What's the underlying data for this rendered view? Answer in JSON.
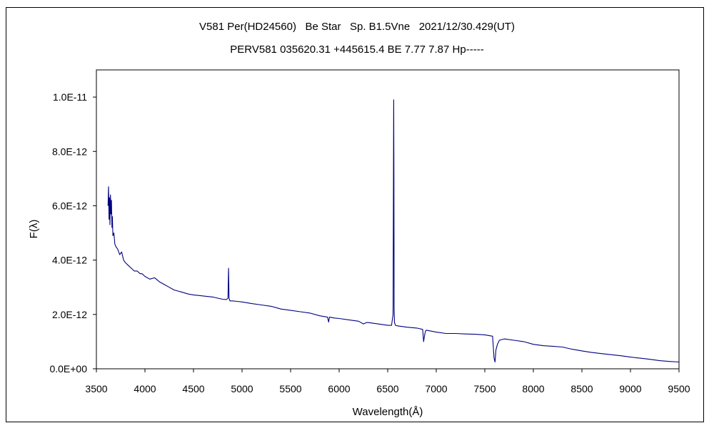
{
  "chart_data": {
    "type": "line",
    "title": "V581 Per(HD24560)   Be Star   Sp. B1.5Vne   2021/12/30.429(UT)",
    "subtitle": "PERV581 035620.31 +445615.4 BE 7.77 7.87 Hp-----",
    "xlabel": "Wavelength(Å)",
    "ylabel": "F(λ)",
    "xlim": [
      3500,
      9500
    ],
    "ylim": [
      0,
      1.1e-11
    ],
    "x_ticks": [
      3500,
      4000,
      4500,
      5000,
      5500,
      6000,
      6500,
      7000,
      7500,
      8000,
      8500,
      9000,
      9500
    ],
    "y_ticks": [
      0,
      2e-12,
      4e-12,
      6e-12,
      8e-12,
      1e-11
    ],
    "y_tick_labels": [
      "0.0E+00",
      "2.0E-12",
      "4.0E-12",
      "6.0E-12",
      "8.0E-12",
      "1.0E-11"
    ],
    "grid": false,
    "legend": "none",
    "line_color": "#000080",
    "series": [
      {
        "x": [
          3620,
          3625,
          3630,
          3635,
          3640,
          3645,
          3650,
          3655,
          3660,
          3665,
          3670,
          3680,
          3690,
          3700,
          3720,
          3740,
          3760,
          3780,
          3800,
          3830,
          3860,
          3890,
          3920,
          3950,
          3970,
          4000,
          4050,
          4100,
          4150,
          4200,
          4250,
          4300,
          4350,
          4400,
          4450,
          4500,
          4550,
          4600,
          4650,
          4700,
          4750,
          4800,
          4840,
          4855,
          4861,
          4866,
          4875,
          4900,
          4950,
          5000,
          5100,
          5200,
          5300,
          5400,
          5500,
          5600,
          5700,
          5800,
          5880,
          5892,
          5900,
          5950,
          6000,
          6100,
          6200,
          6250,
          6280,
          6300,
          6400,
          6500,
          6540,
          6555,
          6560,
          6562,
          6563,
          6564,
          6566,
          6570,
          6580,
          6600,
          6700,
          6800,
          6860,
          6870,
          6878,
          6890,
          6900,
          7000,
          7100,
          7200,
          7300,
          7400,
          7500,
          7580,
          7595,
          7605,
          7615,
          7630,
          7650,
          7700,
          7800,
          7900,
          8000,
          8100,
          8200,
          8300,
          8400,
          8500,
          8600,
          8700,
          8800,
          8900,
          9000,
          9100,
          9200,
          9300,
          9400,
          9500
        ],
        "y": [
          6e-12,
          6.7e-12,
          5.5e-12,
          6.3e-12,
          5.3e-12,
          6.4e-12,
          5.7e-12,
          6.2e-12,
          5.2e-12,
          5.6e-12,
          4.9e-12,
          5e-12,
          4.6e-12,
          4.5e-12,
          4.4e-12,
          4.2e-12,
          4.3e-12,
          4e-12,
          3.9e-12,
          3.8e-12,
          3.7e-12,
          3.6e-12,
          3.6e-12,
          3.5e-12,
          3.5e-12,
          3.4e-12,
          3.3e-12,
          3.35e-12,
          3.2e-12,
          3.1e-12,
          3e-12,
          2.9e-12,
          2.85e-12,
          2.8e-12,
          2.75e-12,
          2.72e-12,
          2.7e-12,
          2.68e-12,
          2.66e-12,
          2.64e-12,
          2.6e-12,
          2.56e-12,
          2.55e-12,
          2.6e-12,
          3.7e-12,
          2.6e-12,
          2.5e-12,
          2.5e-12,
          2.48e-12,
          2.46e-12,
          2.4e-12,
          2.35e-12,
          2.3e-12,
          2.2e-12,
          2.15e-12,
          2.1e-12,
          2.05e-12,
          1.95e-12,
          1.9e-12,
          1.72e-12,
          1.9e-12,
          1.87e-12,
          1.85e-12,
          1.8e-12,
          1.75e-12,
          1.65e-12,
          1.7e-12,
          1.7e-12,
          1.65e-12,
          1.6e-12,
          1.6e-12,
          2e-12,
          8.1e-12,
          9.9e-12,
          8.2e-12,
          7.3e-12,
          2.2e-12,
          1.7e-12,
          1.6e-12,
          1.58e-12,
          1.53e-12,
          1.5e-12,
          1.45e-12,
          1e-12,
          1.2e-12,
          1.4e-12,
          1.42e-12,
          1.35e-12,
          1.3e-12,
          1.3e-12,
          1.28e-12,
          1.27e-12,
          1.25e-12,
          1.2e-12,
          4e-13,
          2.5e-13,
          7e-13,
          9e-13,
          1.05e-12,
          1.1e-12,
          1.05e-12,
          1e-12,
          9e-13,
          8.5e-13,
          8.3e-13,
          8e-13,
          7.2e-13,
          6.6e-13,
          6e-13,
          5.6e-13,
          5.2e-13,
          4.8e-13,
          4.3e-13,
          3.9e-13,
          3.5e-13,
          3e-13,
          2.7e-13,
          2.5e-13
        ]
      }
    ]
  }
}
